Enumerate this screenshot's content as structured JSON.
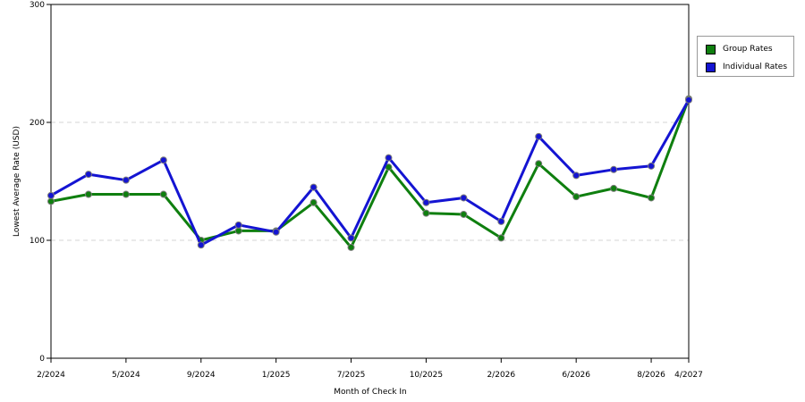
{
  "chart_data": {
    "type": "line",
    "title": "",
    "xlabel": "Month of Check In",
    "ylabel": "Lowest Average Rate (USD)",
    "ylim": [
      0,
      300
    ],
    "yticks": [
      0,
      100,
      200,
      300
    ],
    "grid": "horizontal dashed",
    "legend_position": "right",
    "xtick_labels": [
      "2/2024",
      "5/2024",
      "9/2024",
      "1/2025",
      "7/2025",
      "10/2025",
      "2/2026",
      "6/2026",
      "8/2026",
      "4/2027"
    ],
    "xtick_index": [
      0,
      2,
      4,
      6,
      8,
      10,
      12,
      14,
      16,
      17
    ],
    "series": [
      {
        "name": "Group Rates",
        "color": "#0f7f0f",
        "values": [
          133,
          139,
          139,
          139,
          100,
          108,
          108,
          132,
          94,
          162,
          123,
          122,
          102,
          165,
          137,
          144,
          136,
          220
        ]
      },
      {
        "name": "Individual Rates",
        "color": "#1414d2",
        "values": [
          138,
          156,
          151,
          168,
          96,
          113,
          107,
          145,
          102,
          170,
          132,
          136,
          116,
          188,
          155,
          160,
          163,
          219
        ]
      }
    ]
  }
}
